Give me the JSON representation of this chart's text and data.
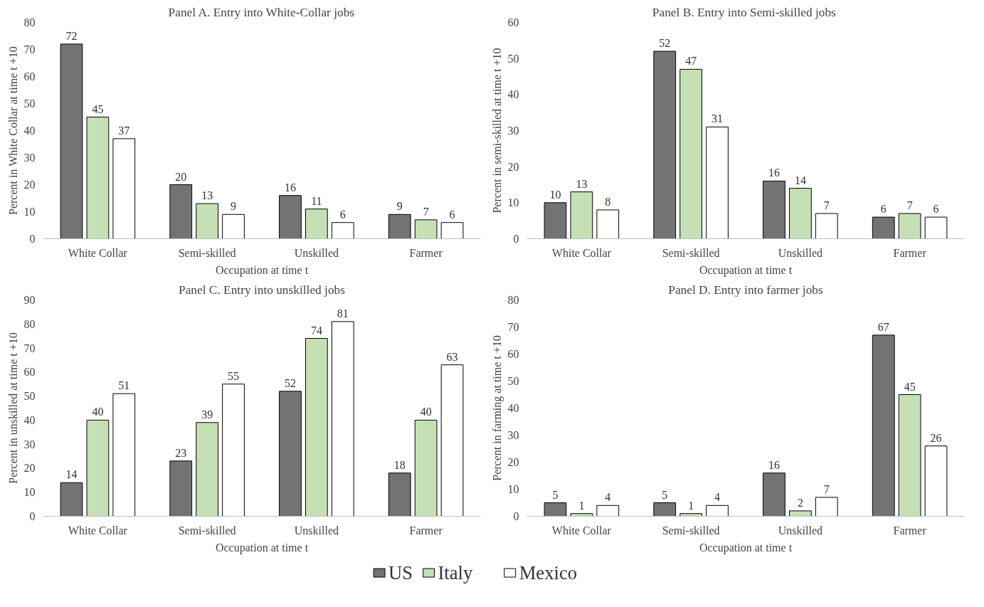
{
  "chart_data": [
    {
      "type": "bar",
      "title": "Panel A. Entry into White-Collar jobs",
      "xlabel": "Occupation at time t",
      "ylabel": "Percent in White Collar at time t +10",
      "categories": [
        "White Collar",
        "Semi-skilled",
        "Unskilled",
        "Farmer"
      ],
      "series": [
        {
          "name": "US",
          "color": "#737373",
          "values": [
            72,
            20,
            16,
            9
          ]
        },
        {
          "name": "Italy",
          "color": "#c5e0b4",
          "values": [
            45,
            13,
            11,
            7
          ]
        },
        {
          "name": "Mexico",
          "color": "#ffffff",
          "values": [
            37,
            9,
            6,
            6
          ]
        }
      ],
      "ylim": [
        0,
        80
      ],
      "yticks": [
        0,
        10,
        20,
        30,
        40,
        50,
        60,
        70,
        80
      ],
      "data_labels": true,
      "grid": false,
      "legend": "bottom"
    },
    {
      "type": "bar",
      "title": "Panel B. Entry into Semi-skilled  jobs",
      "xlabel": "Occupation at time t",
      "ylabel": "Percent in semi-skilled at time t +10",
      "categories": [
        "White Collar",
        "Semi-skilled",
        "Unskilled",
        "Farmer"
      ],
      "series": [
        {
          "color": "#737373",
          "values": [
            10,
            52,
            16,
            6
          ]
        },
        {
          "color": "#c5e0b4",
          "values": [
            13,
            47,
            14,
            7
          ]
        },
        {
          "color": "#ffffff",
          "values": [
            8,
            31,
            7,
            6
          ]
        }
      ],
      "ylim": [
        0,
        60
      ],
      "yticks": [
        0,
        10,
        20,
        30,
        40,
        50,
        60
      ],
      "data_labels": true,
      "grid": false
    },
    {
      "type": "bar",
      "title": "Panel C. Entry into unskilled jobs",
      "xlabel": "Occupation at time t",
      "ylabel": "Percent in unskilled at time t +10",
      "categories": [
        "White Collar",
        "Semi-skilled",
        "Unskilled",
        "Farmer"
      ],
      "series": [
        {
          "color": "#737373",
          "values": [
            14,
            23,
            52,
            18
          ]
        },
        {
          "color": "#c5e0b4",
          "values": [
            40,
            39,
            74,
            40
          ]
        },
        {
          "color": "#ffffff",
          "values": [
            51,
            55,
            81,
            63
          ]
        }
      ],
      "ylim": [
        0,
        90
      ],
      "yticks": [
        0,
        10,
        20,
        30,
        40,
        50,
        60,
        70,
        80,
        90
      ],
      "data_labels": true,
      "grid": false
    },
    {
      "type": "bar",
      "title": "Panel D. Entry into farmer jobs",
      "xlabel": "Occupation at time t",
      "ylabel": "Percent in farming at time t +10",
      "categories": [
        "White Collar",
        "Semi-skilled",
        "Unskilled",
        "Farmer"
      ],
      "series": [
        {
          "color": "#737373",
          "values": [
            5,
            5,
            16,
            67
          ]
        },
        {
          "color": "#c5e0b4",
          "values": [
            1,
            1,
            2,
            45
          ]
        },
        {
          "color": "#ffffff",
          "values": [
            4,
            4,
            7,
            26
          ]
        }
      ],
      "ylim": [
        0,
        80
      ],
      "yticks": [
        0,
        10,
        20,
        30,
        40,
        50,
        60,
        70,
        80
      ],
      "data_labels": true,
      "grid": false
    }
  ]
}
